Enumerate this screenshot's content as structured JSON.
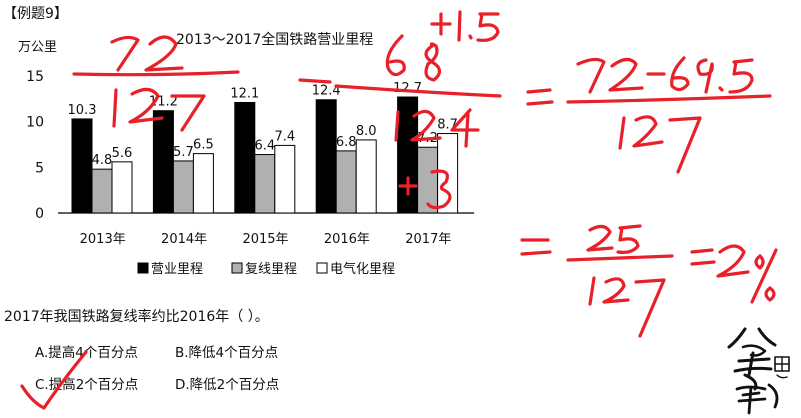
{
  "example_tag": "【例题9】",
  "question": {
    "text": "2017年我国铁路复线率约比2016年（ ）。",
    "options": [
      {
        "label": "A.提高4个百分点"
      },
      {
        "label": "B.降低4个百分点"
      },
      {
        "label": "C.提高2个百分点"
      },
      {
        "label": "D.降低2个百分点"
      }
    ]
  },
  "chart_data": {
    "type": "bar",
    "title": "2013～2017全国铁路营业里程",
    "ylabel": "万公里",
    "ylim": [
      0,
      15
    ],
    "yticks": [
      "0",
      "5",
      "10",
      "15"
    ],
    "categories": [
      "2013年",
      "2014年",
      "2015年",
      "2016年",
      "2017年"
    ],
    "series": [
      {
        "name": "营业里程",
        "values": [
          10.3,
          11.2,
          12.1,
          12.4,
          12.7
        ],
        "labels": [
          "10.3",
          "11.2",
          "12.1",
          "12.4",
          "12.7"
        ],
        "color": "#000000"
      },
      {
        "name": "复线里程",
        "values": [
          4.8,
          5.7,
          6.4,
          6.8,
          7.2
        ],
        "labels": [
          "4.8",
          "5.7",
          "6.4",
          "6.8",
          "7.2"
        ],
        "color": "#b0b0b0"
      },
      {
        "name": "电气化里程",
        "values": [
          5.6,
          6.5,
          7.4,
          8.0,
          8.7
        ],
        "labels": [
          "5.6",
          "6.5",
          "7.4",
          "8.0",
          "8.7"
        ],
        "color": "#ffffff"
      }
    ],
    "legend_position": "bottom",
    "grid": false
  },
  "colors": {
    "ink": "#e8202a",
    "bar_outline": "#000000"
  },
  "handwriting": {
    "top_frac_numerator": "72",
    "top_frac_denominator": "127",
    "second_frac_numerator": "68",
    "second_frac_denominator": "124",
    "numerator_increment": "+1.5",
    "denominator_increment": "+3",
    "result_1": "72-69.5",
    "result_1_den": "127",
    "result_2_num": "2.5",
    "result_2_den": "127",
    "result_final": "2%"
  },
  "seal_text": "公考思维"
}
